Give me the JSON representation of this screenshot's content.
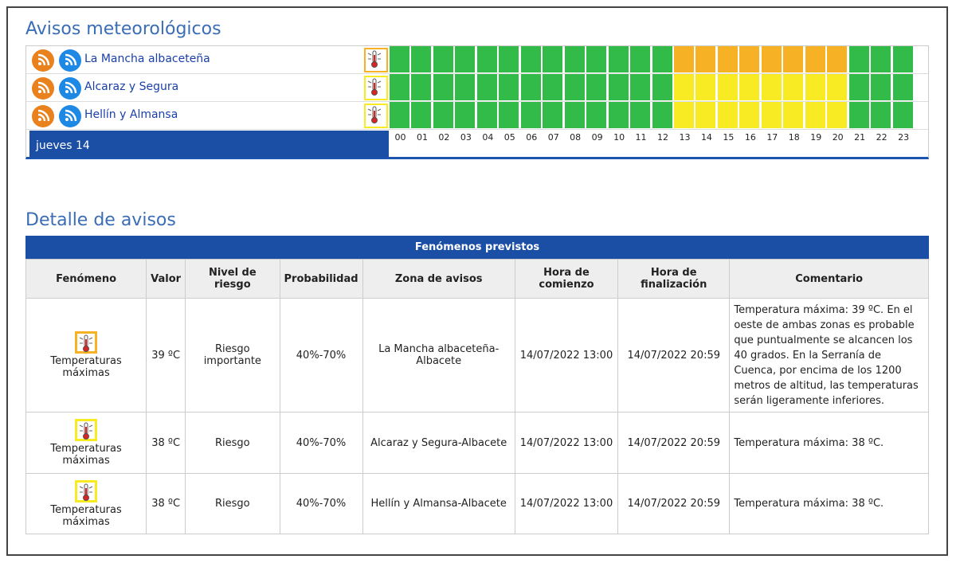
{
  "level_colors": {
    "green": "#33bb4a",
    "yellow": "#f8ea23",
    "orange": "#f7b125"
  },
  "warnings": {
    "title": "Avisos meteorológicos",
    "date": "jueves 14",
    "hours": [
      "00",
      "01",
      "02",
      "03",
      "04",
      "05",
      "06",
      "07",
      "08",
      "09",
      "10",
      "11",
      "12",
      "13",
      "14",
      "15",
      "16",
      "17",
      "18",
      "19",
      "20",
      "21",
      "22",
      "23"
    ],
    "icon_level": "orange",
    "zones": [
      {
        "name": "La Mancha albaceteña",
        "levels": [
          "green",
          "green",
          "green",
          "green",
          "green",
          "green",
          "green",
          "green",
          "green",
          "green",
          "green",
          "green",
          "green",
          "orange",
          "orange",
          "orange",
          "orange",
          "orange",
          "orange",
          "orange",
          "orange",
          "green",
          "green",
          "green"
        ]
      },
      {
        "name": "Alcaraz y Segura",
        "levels": [
          "green",
          "green",
          "green",
          "green",
          "green",
          "green",
          "green",
          "green",
          "green",
          "green",
          "green",
          "green",
          "green",
          "yellow",
          "yellow",
          "yellow",
          "yellow",
          "yellow",
          "yellow",
          "yellow",
          "yellow",
          "green",
          "green",
          "green"
        ]
      },
      {
        "name": "Hellín y Almansa",
        "levels": [
          "green",
          "green",
          "green",
          "green",
          "green",
          "green",
          "green",
          "green",
          "green",
          "green",
          "green",
          "green",
          "green",
          "yellow",
          "yellow",
          "yellow",
          "yellow",
          "yellow",
          "yellow",
          "yellow",
          "yellow",
          "green",
          "green",
          "green"
        ]
      }
    ]
  },
  "detail": {
    "title": "Detalle de avisos",
    "caption": "Fenómenos previstos",
    "headers": [
      "Fenómeno",
      "Valor",
      "Nivel de riesgo",
      "Probabilidad",
      "Zona de avisos",
      "Hora de comienzo",
      "Hora de finalización",
      "Comentario"
    ],
    "rows": [
      {
        "level": "orange",
        "cells": [
          "Temperaturas máximas",
          "39 ºC",
          "Riesgo importante",
          "40%-70%",
          "La Mancha albaceteña-Albacete",
          "14/07/2022 13:00",
          "14/07/2022 20:59",
          "Temperatura máxima: 39 ºC. En el oeste de ambas zonas es probable que puntualmente se alcancen los 40 grados. En la Serranía de Cuenca, por encima de los 1200 metros de altitud, las temperaturas serán ligeramente inferiores."
        ]
      },
      {
        "level": "yellow",
        "cells": [
          "Temperaturas máximas",
          "38 ºC",
          "Riesgo",
          "40%-70%",
          "Alcaraz y Segura-Albacete",
          "14/07/2022 13:00",
          "14/07/2022 20:59",
          "Temperatura máxima: 38 ºC."
        ]
      },
      {
        "level": "yellow",
        "cells": [
          "Temperaturas máximas",
          "38 ºC",
          "Riesgo",
          "40%-70%",
          "Hellín y Almansa-Albacete",
          "14/07/2022 13:00",
          "14/07/2022 20:59",
          "Temperatura máxima: 38 ºC."
        ]
      }
    ]
  }
}
